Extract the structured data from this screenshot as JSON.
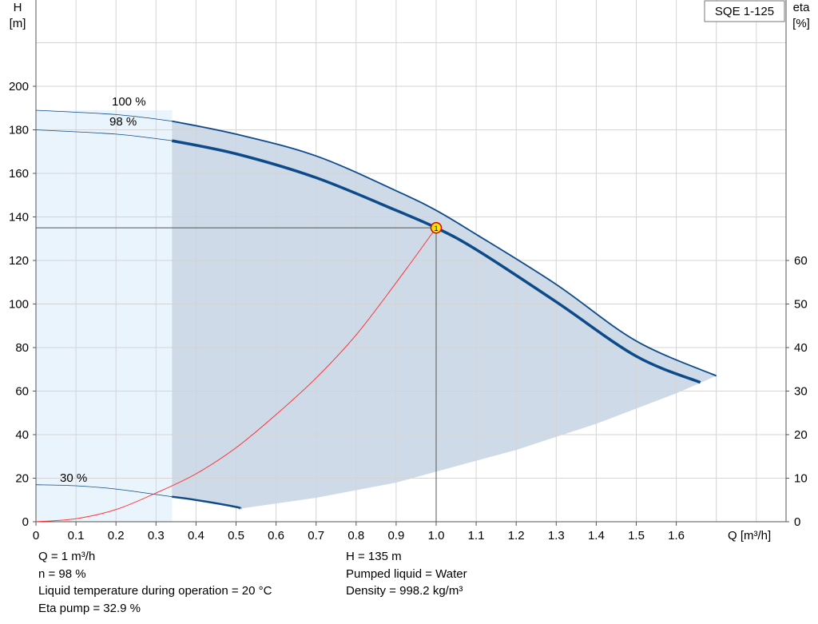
{
  "chart_data": {
    "type": "line",
    "model_label": "SQE 1-125",
    "y_left_label": [
      "H",
      "[m]"
    ],
    "y_right_label": [
      "eta",
      "[%]"
    ],
    "x_label": "Q [m³/h]",
    "x_ticks": [
      "0",
      "0.1",
      "0.2",
      "0.3",
      "0.4",
      "0.5",
      "0.6",
      "0.7",
      "0.8",
      "0.9",
      "1.0",
      "1.1",
      "1.2",
      "1.3",
      "1.4",
      "1.5",
      "1.6"
    ],
    "y_left_ticks": [
      "0",
      "20",
      "40",
      "60",
      "80",
      "100",
      "120",
      "140",
      "160",
      "180",
      "200"
    ],
    "y_right_ticks": [
      "0",
      "10",
      "20",
      "30",
      "40",
      "50",
      "60"
    ],
    "xlim": [
      0,
      1.85
    ],
    "ylim_left": [
      0,
      220
    ],
    "ylim_right": [
      0,
      110
    ],
    "grid": true,
    "curve_labels": [
      "100 %",
      "98 %",
      "30 %"
    ],
    "series": [
      {
        "name": "100 %",
        "axis": "H",
        "x": [
          0,
          0.2,
          0.34,
          0.5,
          0.7,
          0.9,
          1.0,
          1.1,
          1.3,
          1.5,
          1.7
        ],
        "values": [
          189,
          187,
          184,
          178,
          168,
          152,
          143,
          132,
          109,
          83,
          67
        ]
      },
      {
        "name": "98 %",
        "axis": "H",
        "x": [
          0,
          0.2,
          0.34,
          0.5,
          0.7,
          0.9,
          1.0,
          1.1,
          1.3,
          1.5,
          1.66
        ],
        "values": [
          180,
          178,
          175,
          169,
          158,
          143,
          135,
          125,
          101,
          76,
          64
        ]
      },
      {
        "name": "30 %",
        "axis": "H",
        "x": [
          0,
          0.1,
          0.2,
          0.34,
          0.4,
          0.5,
          0.51
        ],
        "values": [
          17,
          16.5,
          15,
          11.5,
          10,
          6.8,
          6
        ]
      },
      {
        "name": "",
        "axis": "eta",
        "x": [
          0,
          0.1,
          0.2,
          0.3,
          0.4,
          0.5,
          0.6,
          0.7,
          0.8,
          0.9,
          1.0
        ],
        "values": [
          0,
          0.7,
          2.8,
          6.6,
          11,
          17,
          24.6,
          33,
          42.9,
          54.9,
          67.5
        ]
      }
    ],
    "shaded_regions": [
      {
        "name": "light",
        "x_range": [
          0,
          0.34
        ]
      },
      {
        "name": "operating-range",
        "x_range": [
          0.34,
          1.7
        ],
        "lower_boundary": {
          "x": [
            0.51,
            0.7,
            0.9,
            1.0,
            1.2,
            1.4,
            1.6,
            1.7
          ],
          "values": [
            6,
            11,
            18,
            23,
            33,
            45,
            59,
            67
          ]
        }
      }
    ],
    "duty_point": {
      "q": 1.0,
      "h": 135,
      "label": "1"
    },
    "colors": {
      "curve": "#0d4a8a",
      "eta": "#ff2a2a",
      "shade": "#cfdae8",
      "shade_light": "#eaf4fc",
      "duty": "#ffe400"
    }
  },
  "info": {
    "left": [
      "Q = 1 m³/h",
      "n = 98 %",
      "Liquid temperature during operation = 20 °C",
      "Eta pump = 32.9 %"
    ],
    "right": [
      "H = 135 m",
      "Pumped liquid = Water",
      "Density = 998.2 kg/m³"
    ]
  }
}
